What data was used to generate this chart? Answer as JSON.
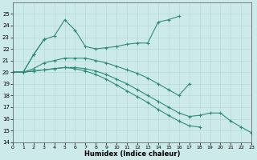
{
  "title": "",
  "xlabel": "Humidex (Indice chaleur)",
  "ylabel": "",
  "x": [
    0,
    1,
    2,
    3,
    4,
    5,
    6,
    7,
    8,
    9,
    10,
    11,
    12,
    13,
    14,
    15,
    16,
    17,
    18,
    19,
    20,
    21,
    22,
    23
  ],
  "line1": [
    20.0,
    20.0,
    21.5,
    22.8,
    23.1,
    24.5,
    23.6,
    22.2,
    22.0,
    22.1,
    22.2,
    22.4,
    22.5,
    22.5,
    24.3,
    24.5,
    24.8,
    null,
    null,
    null,
    null,
    null,
    null,
    null
  ],
  "line2": [
    20.0,
    20.0,
    21.5,
    22.8,
    null,
    null,
    null,
    null,
    null,
    null,
    null,
    null,
    null,
    null,
    null,
    null,
    null,
    null,
    null,
    null,
    null,
    null,
    null,
    null
  ],
  "line3": [
    20.0,
    20.0,
    20.3,
    20.8,
    21.0,
    21.2,
    21.2,
    21.2,
    21.0,
    20.8,
    20.5,
    20.2,
    19.9,
    19.5,
    19.0,
    18.5,
    18.0,
    19.0,
    null,
    null,
    null,
    null,
    null,
    null
  ],
  "line4": [
    20.0,
    20.0,
    20.1,
    20.2,
    20.3,
    20.4,
    20.4,
    20.3,
    20.1,
    19.8,
    19.4,
    19.0,
    18.5,
    18.0,
    17.5,
    17.0,
    16.5,
    16.2,
    16.3,
    16.5,
    16.5,
    15.8,
    15.3,
    14.8
  ],
  "line5": [
    20.0,
    20.0,
    20.1,
    20.2,
    20.3,
    20.4,
    20.3,
    20.1,
    19.8,
    19.4,
    18.9,
    18.4,
    17.9,
    17.4,
    16.8,
    16.3,
    15.8,
    15.4,
    15.3,
    null,
    null,
    null,
    null,
    null
  ],
  "color": "#2e8b7a",
  "bg_color": "#cdeaea",
  "grid_color": "#b8d8d8",
  "ylim": [
    14,
    26
  ],
  "xlim": [
    0,
    23
  ],
  "yticks": [
    14,
    15,
    16,
    17,
    18,
    19,
    20,
    21,
    22,
    23,
    24,
    25
  ],
  "xticks": [
    0,
    1,
    2,
    3,
    4,
    5,
    6,
    7,
    8,
    9,
    10,
    11,
    12,
    13,
    14,
    15,
    16,
    17,
    18,
    19,
    20,
    21,
    22,
    23
  ],
  "marker": "+",
  "markersize": 3.5,
  "linewidth": 0.8
}
